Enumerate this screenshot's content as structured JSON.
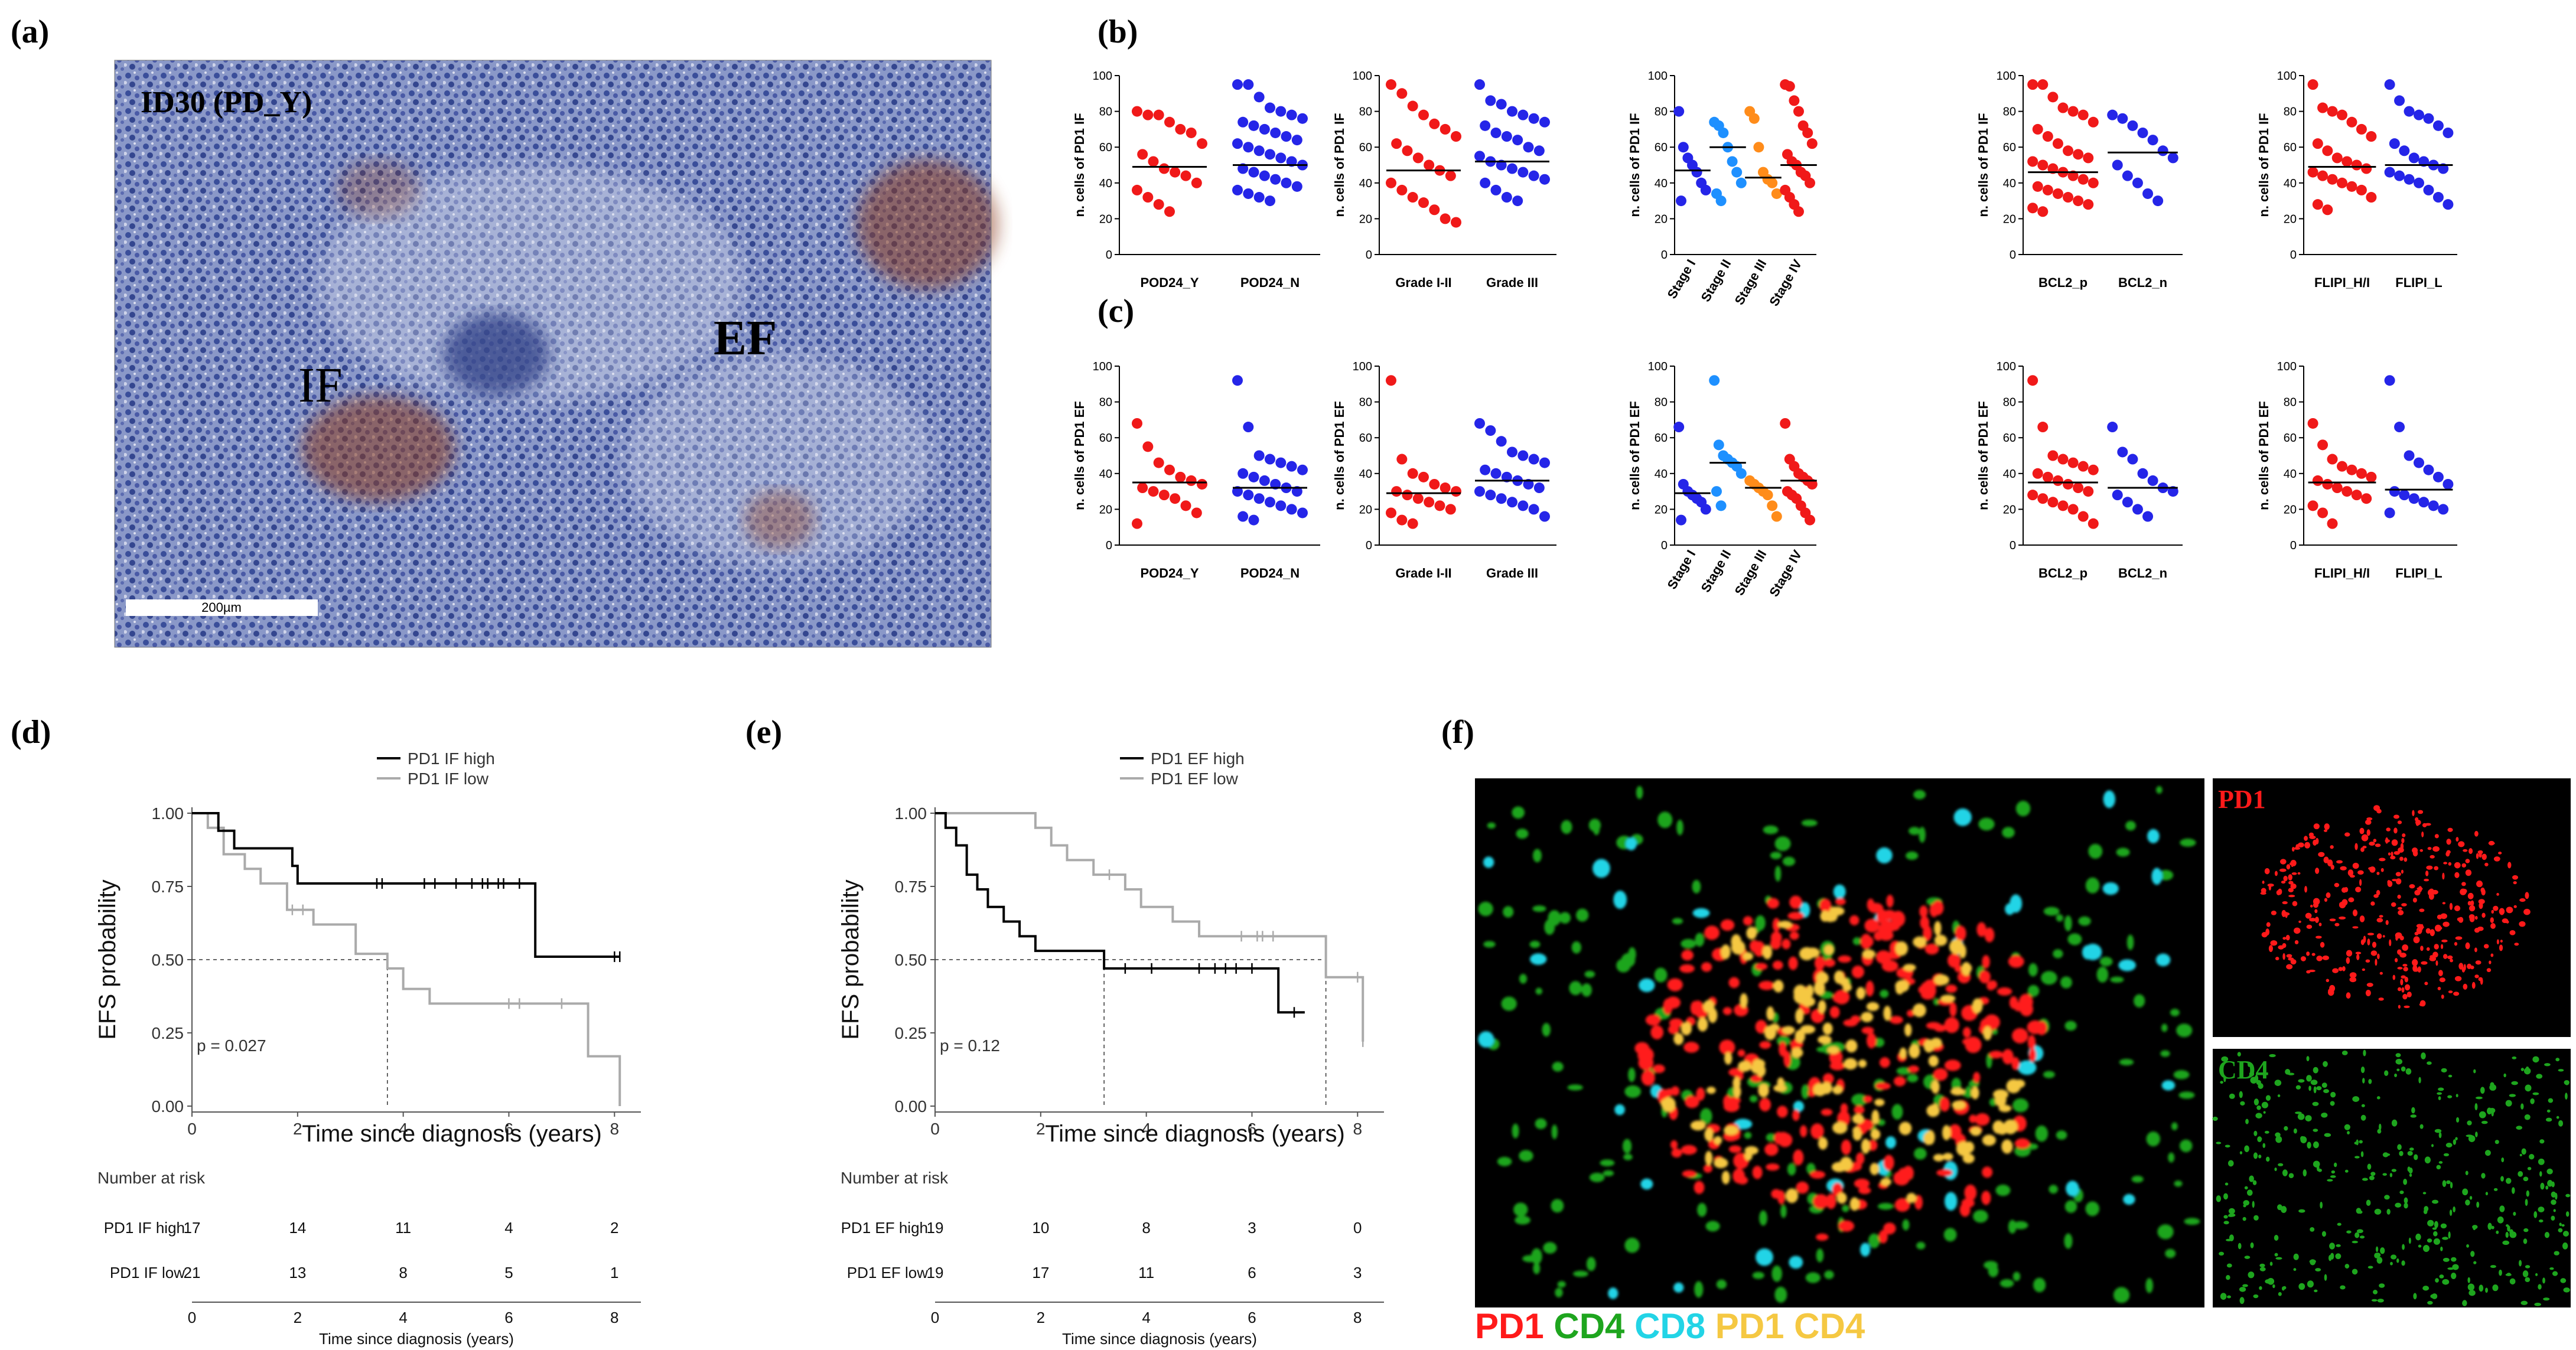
{
  "panel_labels": {
    "a": "(a)",
    "b": "(b)",
    "c": "(c)",
    "d": "(d)",
    "e": "(e)",
    "f": "(f)"
  },
  "panel_a": {
    "sample_label": "ID30 (PD_Y)",
    "if_label": "IF",
    "ef_label": "EF",
    "scale_bar": "200µm"
  },
  "panel_f": {
    "pd1_label": "PD1",
    "cd4_label": "CD4",
    "legend": [
      {
        "text": "PD1",
        "color": "#ff1a1a"
      },
      {
        "text": "CD4",
        "color": "#1ea51e"
      },
      {
        "text": "CD8",
        "color": "#22d4e6"
      },
      {
        "text": "PD1 CD4",
        "color": "#f5c842"
      }
    ]
  },
  "colors": {
    "red": "#f01919",
    "blue": "#2525e8",
    "lightblue": "#1e90ff",
    "orange": "#ff8c1a",
    "km_high": "#000000",
    "km_low": "#aaaaaa"
  },
  "chart_data": [
    {
      "id": "b1",
      "type": "scatter",
      "ylabel": "n. cells of PD1 IF",
      "ylim": [
        0,
        100
      ],
      "yticks": [
        0,
        20,
        40,
        60,
        80,
        100
      ],
      "tick_rot": false,
      "groups": [
        {
          "name": "POD24_Y",
          "color": "red",
          "median": 49,
          "values": [
            80,
            78,
            78,
            74,
            70,
            68,
            62,
            56,
            52,
            48,
            46,
            44,
            40,
            36,
            32,
            28,
            24
          ]
        },
        {
          "name": "POD24_N",
          "color": "blue",
          "median": 50,
          "values": [
            95,
            95,
            88,
            82,
            80,
            78,
            76,
            74,
            72,
            70,
            68,
            66,
            64,
            62,
            60,
            58,
            56,
            54,
            52,
            50,
            48,
            46,
            44,
            42,
            40,
            38,
            36,
            34,
            32,
            30
          ]
        }
      ]
    },
    {
      "id": "b2",
      "type": "scatter",
      "ylabel": "n. cells of PD1 IF",
      "ylim": [
        0,
        100
      ],
      "yticks": [
        0,
        20,
        40,
        60,
        80,
        100
      ],
      "tick_rot": false,
      "groups": [
        {
          "name": "Grade I-II",
          "color": "red",
          "median": 47,
          "values": [
            95,
            90,
            83,
            78,
            73,
            70,
            66,
            62,
            58,
            54,
            50,
            47,
            44,
            40,
            36,
            32,
            29,
            25,
            20,
            18
          ]
        },
        {
          "name": "Grade III",
          "color": "blue",
          "median": 52,
          "values": [
            95,
            86,
            84,
            80,
            78,
            76,
            74,
            72,
            68,
            66,
            64,
            60,
            58,
            55,
            52,
            50,
            48,
            46,
            44,
            42,
            40,
            36,
            32,
            30
          ]
        }
      ]
    },
    {
      "id": "b3",
      "type": "scatter",
      "ylabel": "n. cells of PD1 IF",
      "ylim": [
        0,
        100
      ],
      "yticks": [
        0,
        20,
        40,
        60,
        80,
        100
      ],
      "tick_rot": true,
      "groups": [
        {
          "name": "Stage I",
          "color": "blue",
          "median": 47,
          "values": [
            80,
            60,
            54,
            50,
            46,
            40,
            36,
            30
          ]
        },
        {
          "name": "Stage II",
          "color": "lightblue",
          "median": 60,
          "values": [
            74,
            72,
            68,
            60,
            52,
            46,
            40,
            34,
            30
          ]
        },
        {
          "name": "Stage III",
          "color": "orange",
          "median": 43,
          "values": [
            80,
            76,
            60,
            46,
            42,
            40,
            34
          ]
        },
        {
          "name": "Stage IV",
          "color": "red",
          "median": 50,
          "values": [
            95,
            94,
            86,
            80,
            72,
            68,
            62,
            56,
            52,
            50,
            46,
            44,
            40,
            36,
            32,
            28,
            24
          ]
        }
      ]
    },
    {
      "id": "b4",
      "type": "scatter",
      "ylabel": "n. cells of PD1 IF",
      "ylim": [
        0,
        100
      ],
      "yticks": [
        0,
        20,
        40,
        60,
        80,
        100
      ],
      "tick_rot": false,
      "groups": [
        {
          "name": "BCL2_p",
          "color": "red",
          "median": 46,
          "values": [
            95,
            95,
            88,
            82,
            80,
            78,
            74,
            70,
            66,
            62,
            58,
            56,
            54,
            52,
            50,
            48,
            46,
            44,
            42,
            40,
            38,
            36,
            34,
            32,
            30,
            28,
            26,
            24
          ]
        },
        {
          "name": "BCL2_n",
          "color": "blue",
          "median": 57,
          "values": [
            78,
            76,
            72,
            68,
            64,
            58,
            54,
            50,
            44,
            40,
            34,
            30
          ]
        }
      ]
    },
    {
      "id": "b5",
      "type": "scatter",
      "ylabel": "n. cells of PD1 IF",
      "ylim": [
        0,
        100
      ],
      "yticks": [
        0,
        20,
        40,
        60,
        80,
        100
      ],
      "tick_rot": false,
      "groups": [
        {
          "name": "FLIPI_H/I",
          "color": "red",
          "median": 49,
          "values": [
            95,
            82,
            80,
            78,
            74,
            70,
            66,
            62,
            58,
            54,
            52,
            50,
            48,
            46,
            44,
            42,
            40,
            38,
            36,
            32,
            28,
            25
          ]
        },
        {
          "name": "FLIPI_L",
          "color": "blue",
          "median": 50,
          "values": [
            95,
            86,
            80,
            78,
            76,
            72,
            68,
            62,
            58,
            54,
            52,
            50,
            48,
            46,
            44,
            42,
            40,
            36,
            32,
            28
          ]
        }
      ]
    },
    {
      "id": "c1",
      "type": "scatter",
      "ylabel": "n. cells of PD1 EF",
      "ylim": [
        0,
        100
      ],
      "yticks": [
        0,
        20,
        40,
        60,
        80,
        100
      ],
      "tick_rot": false,
      "groups": [
        {
          "name": "POD24_Y",
          "color": "red",
          "median": 35,
          "values": [
            68,
            55,
            46,
            42,
            38,
            36,
            34,
            32,
            30,
            28,
            26,
            22,
            18,
            12
          ]
        },
        {
          "name": "POD24_N",
          "color": "blue",
          "median": 32,
          "values": [
            92,
            66,
            50,
            48,
            46,
            44,
            42,
            40,
            38,
            36,
            34,
            32,
            30,
            30,
            28,
            26,
            24,
            22,
            20,
            18,
            16,
            14
          ]
        }
      ]
    },
    {
      "id": "c2",
      "type": "scatter",
      "ylabel": "n. cells of PD1 EF",
      "ylim": [
        0,
        100
      ],
      "yticks": [
        0,
        20,
        40,
        60,
        80,
        100
      ],
      "tick_rot": false,
      "groups": [
        {
          "name": "Grade I-II",
          "color": "red",
          "median": 29,
          "values": [
            92,
            48,
            40,
            38,
            34,
            32,
            30,
            30,
            28,
            26,
            24,
            22,
            20,
            18,
            14,
            12
          ]
        },
        {
          "name": "Grade III",
          "color": "blue",
          "median": 36,
          "values": [
            68,
            64,
            58,
            52,
            50,
            48,
            46,
            42,
            40,
            38,
            36,
            34,
            32,
            30,
            28,
            26,
            24,
            22,
            20,
            16
          ]
        }
      ]
    },
    {
      "id": "c3",
      "type": "scatter",
      "ylabel": "n. cells of PD1 EF",
      "ylim": [
        0,
        100
      ],
      "yticks": [
        0,
        20,
        40,
        60,
        80,
        100
      ],
      "tick_rot": true,
      "groups": [
        {
          "name": "Stage I",
          "color": "blue",
          "median": 29,
          "values": [
            66,
            34,
            30,
            28,
            26,
            24,
            20,
            14
          ]
        },
        {
          "name": "Stage II",
          "color": "lightblue",
          "median": 46,
          "values": [
            92,
            56,
            50,
            48,
            46,
            44,
            40,
            30,
            22
          ]
        },
        {
          "name": "Stage III",
          "color": "orange",
          "median": 32,
          "values": [
            36,
            34,
            32,
            30,
            28,
            22,
            16
          ]
        },
        {
          "name": "Stage IV",
          "color": "red",
          "median": 36,
          "values": [
            68,
            48,
            44,
            40,
            38,
            36,
            34,
            30,
            28,
            26,
            22,
            18,
            14
          ]
        }
      ]
    },
    {
      "id": "c4",
      "type": "scatter",
      "ylabel": "n. cells of PD1 EF",
      "ylim": [
        0,
        100
      ],
      "yticks": [
        0,
        20,
        40,
        60,
        80,
        100
      ],
      "tick_rot": false,
      "groups": [
        {
          "name": "BCL2_p",
          "color": "red",
          "median": 35,
          "values": [
            92,
            66,
            50,
            48,
            46,
            44,
            42,
            40,
            38,
            36,
            34,
            32,
            30,
            28,
            26,
            24,
            22,
            20,
            16,
            12
          ]
        },
        {
          "name": "BCL2_n",
          "color": "blue",
          "median": 32,
          "values": [
            66,
            52,
            48,
            40,
            36,
            32,
            30,
            28,
            24,
            20,
            16
          ]
        }
      ]
    },
    {
      "id": "c5",
      "type": "scatter",
      "ylabel": "n. cells of PD1 EF",
      "ylim": [
        0,
        100
      ],
      "yticks": [
        0,
        20,
        40,
        60,
        80,
        100
      ],
      "tick_rot": false,
      "groups": [
        {
          "name": "FLIPI_H/I",
          "color": "red",
          "median": 35,
          "values": [
            68,
            56,
            48,
            44,
            42,
            40,
            38,
            36,
            34,
            32,
            30,
            28,
            26,
            22,
            18,
            12
          ]
        },
        {
          "name": "FLIPI_L",
          "color": "blue",
          "median": 31,
          "values": [
            92,
            66,
            50,
            46,
            42,
            38,
            34,
            30,
            28,
            26,
            24,
            22,
            20,
            18
          ]
        }
      ]
    },
    {
      "id": "d",
      "type": "line",
      "xlabel": "Time since diagnosis (years)",
      "ylabel": "EFS probability",
      "xlim": [
        0,
        8.5
      ],
      "ylim": [
        0,
        1
      ],
      "xticks": [
        0,
        2,
        4,
        6,
        8
      ],
      "yticks": [
        "0.00",
        "0.25",
        "0.50",
        "0.75",
        "1.00"
      ],
      "pvalue": "p = 0.027",
      "median_x": [
        3.7
      ],
      "series": [
        {
          "name": "PD1 IF high",
          "color": "km_high",
          "steps": [
            [
              0,
              1
            ],
            [
              0.5,
              0.94
            ],
            [
              0.8,
              0.88
            ],
            [
              1.9,
              0.82
            ],
            [
              2.0,
              0.76
            ],
            [
              6.5,
              0.76
            ],
            [
              6.5,
              0.51
            ],
            [
              8.1,
              0.51
            ]
          ],
          "censor": [
            3.5,
            3.6,
            4.4,
            4.6,
            5.0,
            5.3,
            5.5,
            5.6,
            5.8,
            5.9,
            6.2,
            8.0,
            8.1
          ]
        },
        {
          "name": "PD1 IF low",
          "color": "km_low",
          "steps": [
            [
              0,
              1
            ],
            [
              0.3,
              0.95
            ],
            [
              0.6,
              0.86
            ],
            [
              1.0,
              0.81
            ],
            [
              1.3,
              0.76
            ],
            [
              1.8,
              0.67
            ],
            [
              2.3,
              0.62
            ],
            [
              3.1,
              0.52
            ],
            [
              3.7,
              0.47
            ],
            [
              4.0,
              0.4
            ],
            [
              4.5,
              0.35
            ],
            [
              7.5,
              0.35
            ],
            [
              7.5,
              0.17
            ],
            [
              8.1,
              0.17
            ],
            [
              8.1,
              0
            ]
          ],
          "censor": [
            1.9,
            2.1,
            6.0,
            6.2,
            7.0
          ]
        }
      ],
      "risk_title": "Number at risk",
      "risk_rows": [
        {
          "label": "PD1 IF high",
          "values": [
            "17",
            "14",
            "11",
            "4",
            "2"
          ]
        },
        {
          "label": "PD1 IF low",
          "values": [
            "21",
            "13",
            "8",
            "5",
            "1"
          ]
        }
      ],
      "risk_xlabel": "Time since diagnosis (years)"
    },
    {
      "id": "e",
      "type": "line",
      "xlabel": "Time since diagnosis (years)",
      "ylabel": "EFS probability",
      "xlim": [
        0,
        8.5
      ],
      "ylim": [
        0,
        1
      ],
      "xticks": [
        0,
        2,
        4,
        6,
        8
      ],
      "yticks": [
        "0.00",
        "0.25",
        "0.50",
        "0.75",
        "1.00"
      ],
      "pvalue": "p = 0.12",
      "median_x": [
        3.2,
        7.4
      ],
      "series": [
        {
          "name": "PD1 EF high",
          "color": "km_high",
          "steps": [
            [
              0,
              1
            ],
            [
              0.2,
              0.95
            ],
            [
              0.4,
              0.89
            ],
            [
              0.6,
              0.79
            ],
            [
              0.8,
              0.74
            ],
            [
              1.0,
              0.68
            ],
            [
              1.3,
              0.63
            ],
            [
              1.6,
              0.58
            ],
            [
              1.9,
              0.53
            ],
            [
              3.2,
              0.47
            ],
            [
              6.5,
              0.47
            ],
            [
              6.5,
              0.32
            ],
            [
              7.0,
              0.32
            ]
          ],
          "censor": [
            3.6,
            4.1,
            5.0,
            5.3,
            5.5,
            5.7,
            6.0,
            6.8
          ]
        },
        {
          "name": "PD1 EF low",
          "color": "km_low",
          "steps": [
            [
              0,
              1
            ],
            [
              1.9,
              0.95
            ],
            [
              2.2,
              0.89
            ],
            [
              2.5,
              0.84
            ],
            [
              3.0,
              0.79
            ],
            [
              3.6,
              0.74
            ],
            [
              3.9,
              0.68
            ],
            [
              4.5,
              0.63
            ],
            [
              5.0,
              0.58
            ],
            [
              7.4,
              0.58
            ],
            [
              7.4,
              0.44
            ],
            [
              8.1,
              0.44
            ],
            [
              8.1,
              0.22
            ]
          ],
          "censor": [
            3.3,
            5.8,
            6.1,
            6.2,
            6.4,
            8.0,
            8.1
          ]
        }
      ],
      "risk_title": "Number at risk",
      "risk_rows": [
        {
          "label": "PD1 EF high",
          "values": [
            "19",
            "10",
            "8",
            "3",
            "0"
          ]
        },
        {
          "label": "PD1 EF low",
          "values": [
            "19",
            "17",
            "11",
            "6",
            "3"
          ]
        }
      ],
      "risk_xlabel": "Time since diagnosis (years)"
    }
  ]
}
